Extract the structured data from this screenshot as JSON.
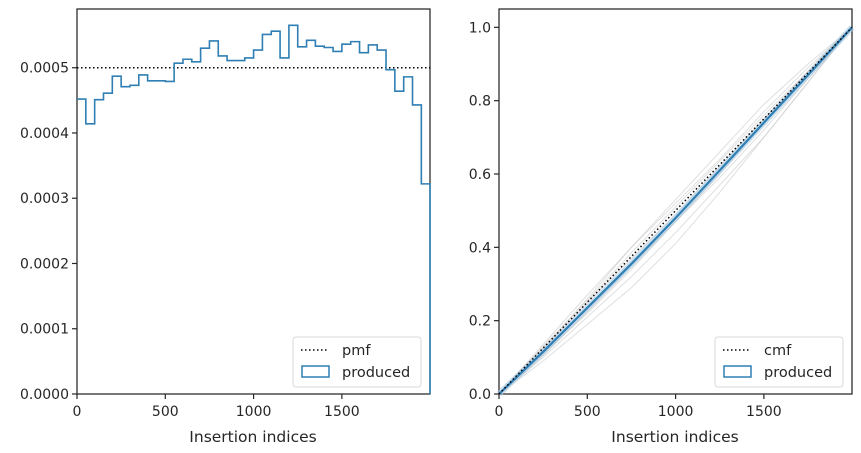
{
  "chart_data": [
    {
      "type": "step",
      "xlabel": "Insertion indices",
      "ylabel": "",
      "xlim": [
        0,
        1999
      ],
      "ylim": [
        0,
        0.00059
      ],
      "xticks": [
        0,
        500,
        1000,
        1500
      ],
      "yticks": [
        0.0,
        0.0001,
        0.0002,
        0.0003,
        0.0004,
        0.0005
      ],
      "ytick_labels": [
        "0.0000",
        "0.0001",
        "0.0002",
        "0.0003",
        "0.0004",
        "0.0005"
      ],
      "reference_line": {
        "name": "pmf",
        "value": 0.0005,
        "style": "dotted",
        "color": "#000000"
      },
      "series": [
        {
          "name": "produced",
          "color": "#2f7fb4",
          "bin_width": 50,
          "values": [
            0.000452,
            0.000414,
            0.000451,
            0.000461,
            0.000487,
            0.000471,
            0.000473,
            0.000489,
            0.00048,
            0.00048,
            0.000479,
            0.000507,
            0.000513,
            0.000509,
            0.00053,
            0.000541,
            0.000518,
            0.000511,
            0.000511,
            0.000515,
            0.000527,
            0.000551,
            0.000556,
            0.000515,
            0.000565,
            0.000532,
            0.000542,
            0.000533,
            0.000531,
            0.000525,
            0.000536,
            0.00054,
            0.000523,
            0.000535,
            0.000527,
            0.000497,
            0.000464,
            0.000486,
            0.000443,
            0.000322
          ]
        }
      ],
      "legend": {
        "entries": [
          "pmf",
          "produced"
        ],
        "loc": "lower right"
      }
    },
    {
      "type": "line",
      "xlabel": "Insertion indices",
      "ylabel": "",
      "xlim": [
        0,
        1999
      ],
      "ylim": [
        0,
        1.05
      ],
      "xticks": [
        0,
        500,
        1000,
        1500
      ],
      "yticks": [
        0.0,
        0.2,
        0.4,
        0.6,
        0.8,
        1.0
      ],
      "ytick_labels": [
        "0.0",
        "0.2",
        "0.4",
        "0.6",
        "0.8",
        "1.0"
      ],
      "reference_line": {
        "name": "cmf",
        "from": [
          0,
          0
        ],
        "to": [
          1999,
          1.0
        ],
        "style": "dotted",
        "color": "#000000"
      },
      "series": [
        {
          "name": "produced",
          "color": "#2f7fb4",
          "x": [
            0,
            250,
            500,
            750,
            1000,
            1250,
            1500,
            1750,
            1999
          ],
          "y": [
            0.0,
            0.115,
            0.235,
            0.355,
            0.48,
            0.61,
            0.74,
            0.87,
            1.0
          ]
        }
      ],
      "background_traces": {
        "color": "#c9c9c9",
        "x": [
          0,
          250,
          500,
          750,
          1000,
          1250,
          1500,
          1750,
          1999
        ],
        "traces": [
          [
            0,
            0.125,
            0.26,
            0.4,
            0.53,
            0.66,
            0.79,
            0.9,
            1.0
          ],
          [
            0,
            0.1,
            0.21,
            0.32,
            0.44,
            0.57,
            0.7,
            0.85,
            1.0
          ],
          [
            0,
            0.135,
            0.27,
            0.4,
            0.52,
            0.64,
            0.77,
            0.89,
            1.0
          ],
          [
            0,
            0.11,
            0.22,
            0.34,
            0.47,
            0.6,
            0.74,
            0.88,
            1.0
          ],
          [
            0,
            0.12,
            0.25,
            0.37,
            0.49,
            0.62,
            0.75,
            0.87,
            1.0
          ],
          [
            0,
            0.09,
            0.19,
            0.29,
            0.41,
            0.55,
            0.7,
            0.85,
            1.0
          ],
          [
            0,
            0.13,
            0.255,
            0.385,
            0.51,
            0.635,
            0.76,
            0.88,
            1.0
          ],
          [
            0,
            0.105,
            0.225,
            0.35,
            0.47,
            0.59,
            0.72,
            0.86,
            1.0
          ]
        ]
      },
      "legend": {
        "entries": [
          "cmf",
          "produced"
        ],
        "loc": "lower right"
      }
    }
  ]
}
